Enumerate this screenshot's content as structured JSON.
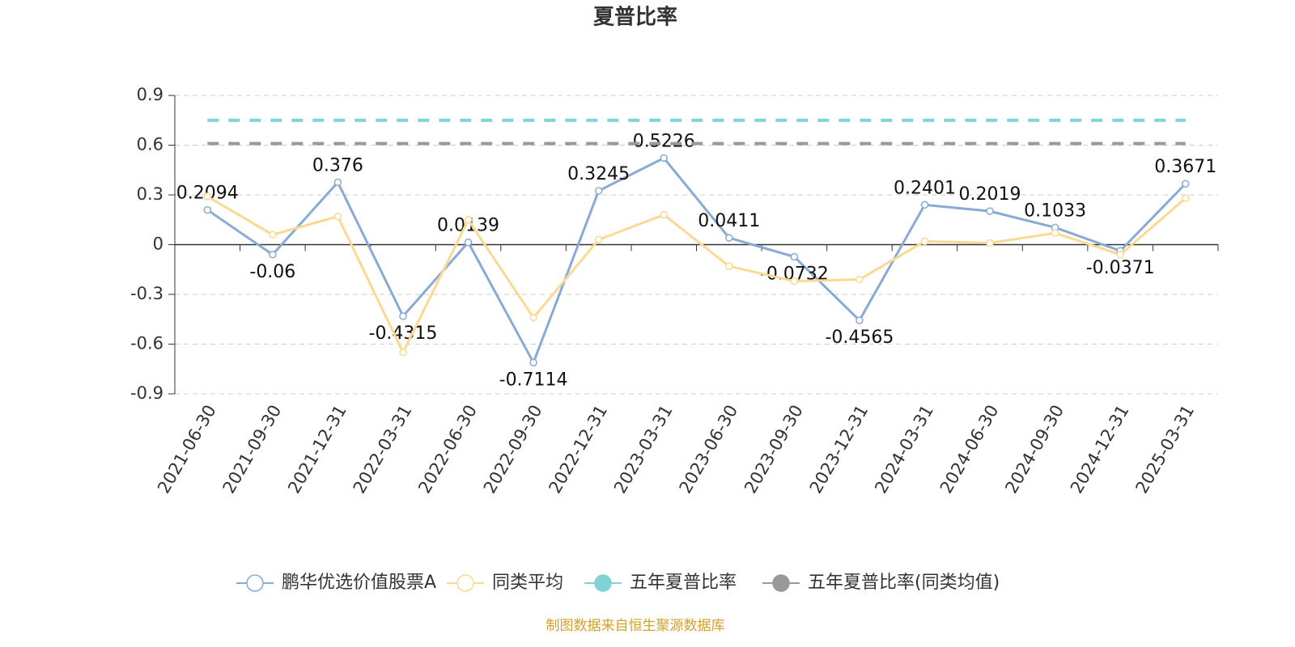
{
  "chart_data": {
    "type": "line",
    "title": "夏普比率",
    "categories": [
      "2021-06-30",
      "2021-09-30",
      "2021-12-31",
      "2022-03-31",
      "2022-06-30",
      "2022-09-30",
      "2022-12-31",
      "2023-03-31",
      "2023-06-30",
      "2023-09-30",
      "2023-12-31",
      "2024-03-31",
      "2024-06-30",
      "2024-09-30",
      "2024-12-31",
      "2025-03-31"
    ],
    "series": [
      {
        "name": "鹏华优选价值股票A",
        "color": "#8aaad6",
        "values": [
          0.2094,
          -0.06,
          0.376,
          -0.4315,
          0.0139,
          -0.7114,
          0.3245,
          0.5226,
          0.0411,
          -0.0732,
          -0.4565,
          0.2401,
          0.2019,
          0.1033,
          -0.0371,
          0.3671
        ],
        "labels": true
      },
      {
        "name": "同类平均",
        "color": "#fbd993",
        "values": [
          0.29,
          0.06,
          0.17,
          -0.65,
          0.15,
          -0.44,
          0.03,
          0.18,
          -0.13,
          -0.22,
          -0.21,
          0.02,
          0.01,
          0.07,
          -0.06,
          0.28
        ]
      },
      {
        "name": "五年夏普比率",
        "color": "#80d2d5",
        "dashed": true,
        "values": [
          0.75,
          0.75,
          0.75,
          0.75,
          0.75,
          0.75,
          0.75,
          0.75,
          0.75,
          0.75,
          0.75,
          0.75,
          0.75,
          0.75,
          0.75,
          0.75
        ]
      },
      {
        "name": "五年夏普比率(同类均值)",
        "color": "#999999",
        "dashed": true,
        "values": [
          0.61,
          0.61,
          0.61,
          0.61,
          0.61,
          0.61,
          0.61,
          0.61,
          0.61,
          0.61,
          0.61,
          0.61,
          0.61,
          0.61,
          0.61,
          0.61
        ]
      }
    ],
    "ylim": [
      -0.9,
      0.9
    ],
    "yticks": [
      -0.9,
      -0.6,
      -0.3,
      0,
      0.3,
      0.6,
      0.9
    ],
    "grid": true,
    "source": "制图数据来自恒生聚源数据库"
  }
}
